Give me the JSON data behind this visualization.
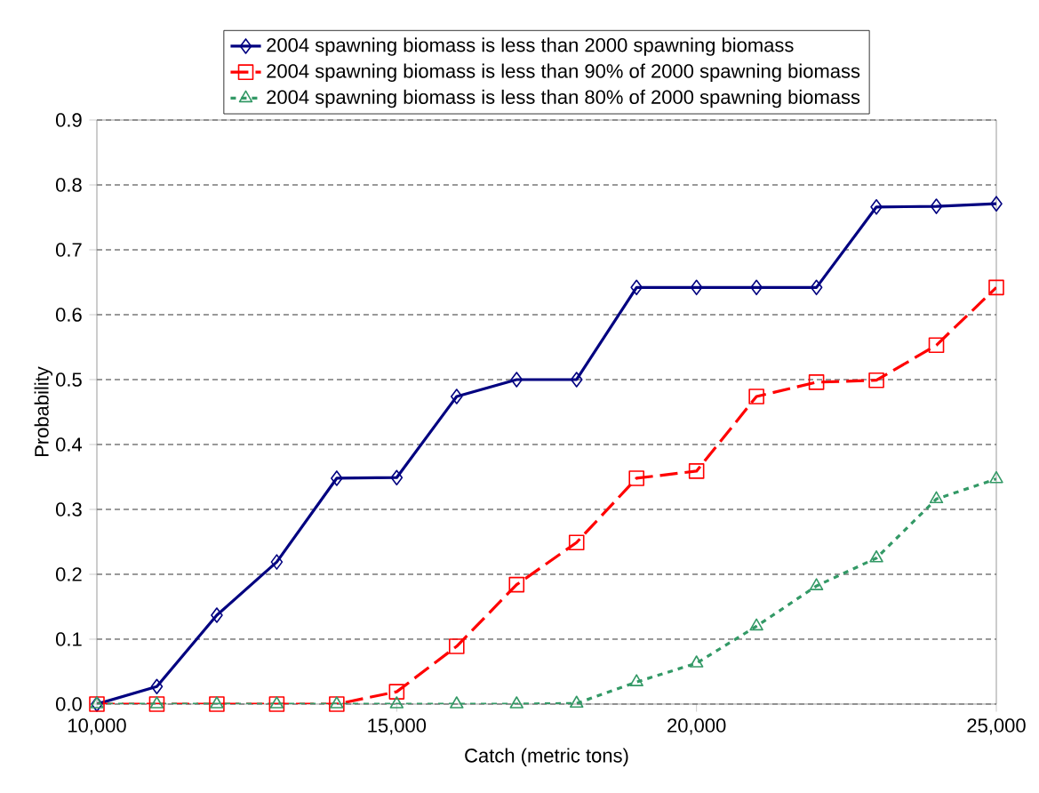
{
  "chart_data": {
    "type": "line",
    "xlabel": "Catch (metric tons)",
    "ylabel": "Probability",
    "x": [
      10000,
      11000,
      12000,
      13000,
      14000,
      15000,
      16000,
      17000,
      18000,
      19000,
      20000,
      21000,
      22000,
      23000,
      24000,
      25000
    ],
    "series": [
      {
        "name": "2004 spawning biomass is less than 2000 spawning biomass",
        "color": "#000080",
        "marker": "diamond",
        "line_style": "solid",
        "values": [
          0.0,
          0.027,
          0.137,
          0.219,
          0.348,
          0.349,
          0.474,
          0.5,
          0.5,
          0.642,
          0.642,
          0.642,
          0.642,
          0.766,
          0.767,
          0.771
        ]
      },
      {
        "name": "2004 spawning biomass is less than 90% of 2000 spawning biomass",
        "color": "#ff0000",
        "marker": "square",
        "line_style": "dashed",
        "values": [
          0.0,
          0.0,
          0.0,
          0.0,
          0.0,
          0.019,
          0.089,
          0.184,
          0.249,
          0.348,
          0.359,
          0.474,
          0.496,
          0.499,
          0.553,
          0.642
        ]
      },
      {
        "name": "2004 spawning biomass is less than 80% of 2000 spawning biomass",
        "color": "#339966",
        "marker": "triangle",
        "line_style": "dotted",
        "values": [
          0.0,
          0.0,
          0.0,
          0.0,
          0.0,
          0.0,
          0.0,
          0.0,
          0.001,
          0.034,
          0.063,
          0.12,
          0.182,
          0.225,
          0.316,
          0.347
        ]
      }
    ],
    "xlim": [
      10000,
      25000
    ],
    "xticks": [
      {
        "value": 10000,
        "label": "10,000"
      },
      {
        "value": 15000,
        "label": "15,000"
      },
      {
        "value": 20000,
        "label": "20,000"
      },
      {
        "value": 25000,
        "label": "25,000"
      }
    ],
    "ylim": [
      0,
      0.9
    ],
    "yticks": [
      {
        "value": 0,
        "label": "0.0"
      },
      0.1,
      0.2,
      0.3,
      0.4,
      0.5,
      0.6,
      0.7,
      0.8,
      0.9
    ],
    "grid": "y",
    "legend": "top"
  }
}
